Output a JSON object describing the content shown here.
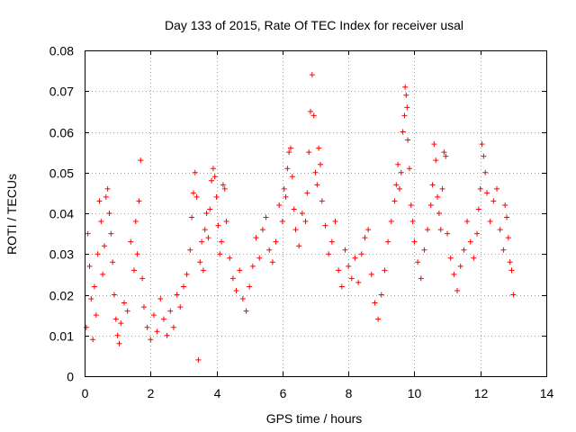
{
  "chart_data": {
    "type": "scatter",
    "title": "Day 133 of 2015, Rate Of TEC Index for receiver usal",
    "xlabel": "GPS time / hours",
    "ylabel": "ROTI / TECUs",
    "xlim": [
      0,
      14
    ],
    "ylim": [
      0,
      0.08
    ],
    "x_ticks": [
      0,
      2,
      4,
      6,
      8,
      10,
      12,
      14
    ],
    "x_tick_labels": [
      "0",
      "2",
      "4",
      "6",
      "8",
      "10",
      "12",
      "14"
    ],
    "y_ticks": [
      0,
      0.01,
      0.02,
      0.03,
      0.04,
      0.05,
      0.06,
      0.07,
      0.08
    ],
    "y_tick_labels": [
      "0",
      "0.01",
      "0.02",
      "0.03",
      "0.04",
      "0.05",
      "0.06",
      "0.07",
      "0.08"
    ],
    "grid": true,
    "marker": "+",
    "marker_color": "#ff0000",
    "series": [
      {
        "name": "ROTI",
        "points": [
          [
            0.05,
            0.012
          ],
          [
            0.1,
            0.035
          ],
          [
            0.15,
            0.027
          ],
          [
            0.2,
            0.019
          ],
          [
            0.25,
            0.009
          ],
          [
            0.3,
            0.022
          ],
          [
            0.35,
            0.015
          ],
          [
            0.4,
            0.03
          ],
          [
            0.45,
            0.043
          ],
          [
            0.5,
            0.038
          ],
          [
            0.55,
            0.025
          ],
          [
            0.6,
            0.032
          ],
          [
            0.65,
            0.044
          ],
          [
            0.7,
            0.046
          ],
          [
            0.75,
            0.04
          ],
          [
            0.8,
            0.035
          ],
          [
            0.85,
            0.028
          ],
          [
            0.9,
            0.02
          ],
          [
            0.95,
            0.014
          ],
          [
            1.0,
            0.01
          ],
          [
            1.05,
            0.008
          ],
          [
            1.1,
            0.013
          ],
          [
            1.2,
            0.018
          ],
          [
            1.3,
            0.016
          ],
          [
            1.4,
            0.033
          ],
          [
            1.5,
            0.026
          ],
          [
            1.55,
            0.038
          ],
          [
            1.6,
            0.03
          ],
          [
            1.65,
            0.043
          ],
          [
            1.7,
            0.053
          ],
          [
            1.75,
            0.024
          ],
          [
            1.8,
            0.017
          ],
          [
            1.9,
            0.012
          ],
          [
            2.0,
            0.009
          ],
          [
            2.1,
            0.015
          ],
          [
            2.2,
            0.011
          ],
          [
            2.3,
            0.019
          ],
          [
            2.4,
            0.014
          ],
          [
            2.5,
            0.01
          ],
          [
            2.6,
            0.016
          ],
          [
            2.7,
            0.012
          ],
          [
            2.8,
            0.02
          ],
          [
            2.9,
            0.017
          ],
          [
            3.0,
            0.022
          ],
          [
            3.1,
            0.025
          ],
          [
            3.2,
            0.031
          ],
          [
            3.25,
            0.039
          ],
          [
            3.3,
            0.045
          ],
          [
            3.35,
            0.05
          ],
          [
            3.4,
            0.044
          ],
          [
            3.45,
            0.004
          ],
          [
            3.5,
            0.028
          ],
          [
            3.55,
            0.033
          ],
          [
            3.6,
            0.026
          ],
          [
            3.65,
            0.036
          ],
          [
            3.7,
            0.04
          ],
          [
            3.75,
            0.034
          ],
          [
            3.8,
            0.041
          ],
          [
            3.85,
            0.048
          ],
          [
            3.9,
            0.051
          ],
          [
            3.95,
            0.049
          ],
          [
            4.0,
            0.044
          ],
          [
            4.05,
            0.037
          ],
          [
            4.1,
            0.03
          ],
          [
            4.15,
            0.033
          ],
          [
            4.2,
            0.047
          ],
          [
            4.25,
            0.046
          ],
          [
            4.3,
            0.038
          ],
          [
            4.4,
            0.029
          ],
          [
            4.5,
            0.024
          ],
          [
            4.6,
            0.021
          ],
          [
            4.7,
            0.026
          ],
          [
            4.8,
            0.019
          ],
          [
            4.9,
            0.016
          ],
          [
            5.0,
            0.022
          ],
          [
            5.1,
            0.027
          ],
          [
            5.2,
            0.034
          ],
          [
            5.3,
            0.029
          ],
          [
            5.4,
            0.036
          ],
          [
            5.5,
            0.039
          ],
          [
            5.6,
            0.031
          ],
          [
            5.7,
            0.028
          ],
          [
            5.8,
            0.033
          ],
          [
            5.9,
            0.042
          ],
          [
            6.0,
            0.038
          ],
          [
            6.05,
            0.046
          ],
          [
            6.1,
            0.044
          ],
          [
            6.15,
            0.051
          ],
          [
            6.2,
            0.055
          ],
          [
            6.25,
            0.056
          ],
          [
            6.3,
            0.049
          ],
          [
            6.35,
            0.041
          ],
          [
            6.4,
            0.036
          ],
          [
            6.5,
            0.032
          ],
          [
            6.6,
            0.04
          ],
          [
            6.7,
            0.038
          ],
          [
            6.75,
            0.045
          ],
          [
            6.8,
            0.055
          ],
          [
            6.85,
            0.065
          ],
          [
            6.9,
            0.074
          ],
          [
            6.95,
            0.064
          ],
          [
            7.0,
            0.05
          ],
          [
            7.05,
            0.047
          ],
          [
            7.1,
            0.056
          ],
          [
            7.15,
            0.052
          ],
          [
            7.2,
            0.043
          ],
          [
            7.3,
            0.037
          ],
          [
            7.4,
            0.03
          ],
          [
            7.5,
            0.033
          ],
          [
            7.6,
            0.038
          ],
          [
            7.7,
            0.026
          ],
          [
            7.8,
            0.022
          ],
          [
            7.9,
            0.031
          ],
          [
            8.0,
            0.027
          ],
          [
            8.1,
            0.024
          ],
          [
            8.2,
            0.029
          ],
          [
            8.3,
            0.023
          ],
          [
            8.4,
            0.03
          ],
          [
            8.5,
            0.034
          ],
          [
            8.6,
            0.036
          ],
          [
            8.7,
            0.025
          ],
          [
            8.8,
            0.018
          ],
          [
            8.9,
            0.014
          ],
          [
            9.0,
            0.02
          ],
          [
            9.1,
            0.026
          ],
          [
            9.2,
            0.033
          ],
          [
            9.3,
            0.038
          ],
          [
            9.4,
            0.043
          ],
          [
            9.45,
            0.047
          ],
          [
            9.5,
            0.052
          ],
          [
            9.55,
            0.046
          ],
          [
            9.6,
            0.05
          ],
          [
            9.65,
            0.06
          ],
          [
            9.7,
            0.064
          ],
          [
            9.72,
            0.071
          ],
          [
            9.75,
            0.069
          ],
          [
            9.78,
            0.066
          ],
          [
            9.8,
            0.058
          ],
          [
            9.85,
            0.051
          ],
          [
            9.9,
            0.042
          ],
          [
            9.95,
            0.038
          ],
          [
            10.0,
            0.033
          ],
          [
            10.1,
            0.028
          ],
          [
            10.2,
            0.024
          ],
          [
            10.3,
            0.031
          ],
          [
            10.4,
            0.036
          ],
          [
            10.5,
            0.042
          ],
          [
            10.55,
            0.047
          ],
          [
            10.6,
            0.057
          ],
          [
            10.65,
            0.053
          ],
          [
            10.7,
            0.044
          ],
          [
            10.75,
            0.04
          ],
          [
            10.8,
            0.036
          ],
          [
            10.85,
            0.046
          ],
          [
            10.9,
            0.055
          ],
          [
            10.95,
            0.054
          ],
          [
            11.0,
            0.035
          ],
          [
            11.1,
            0.029
          ],
          [
            11.2,
            0.025
          ],
          [
            11.3,
            0.021
          ],
          [
            11.4,
            0.027
          ],
          [
            11.5,
            0.031
          ],
          [
            11.6,
            0.038
          ],
          [
            11.7,
            0.033
          ],
          [
            11.8,
            0.029
          ],
          [
            11.9,
            0.035
          ],
          [
            11.95,
            0.041
          ],
          [
            12.0,
            0.046
          ],
          [
            12.05,
            0.057
          ],
          [
            12.1,
            0.054
          ],
          [
            12.15,
            0.05
          ],
          [
            12.2,
            0.045
          ],
          [
            12.3,
            0.038
          ],
          [
            12.4,
            0.043
          ],
          [
            12.5,
            0.046
          ],
          [
            12.6,
            0.036
          ],
          [
            12.7,
            0.031
          ],
          [
            12.75,
            0.042
          ],
          [
            12.8,
            0.039
          ],
          [
            12.85,
            0.034
          ],
          [
            12.9,
            0.028
          ],
          [
            12.95,
            0.026
          ],
          [
            13.0,
            0.02
          ]
        ]
      }
    ]
  }
}
